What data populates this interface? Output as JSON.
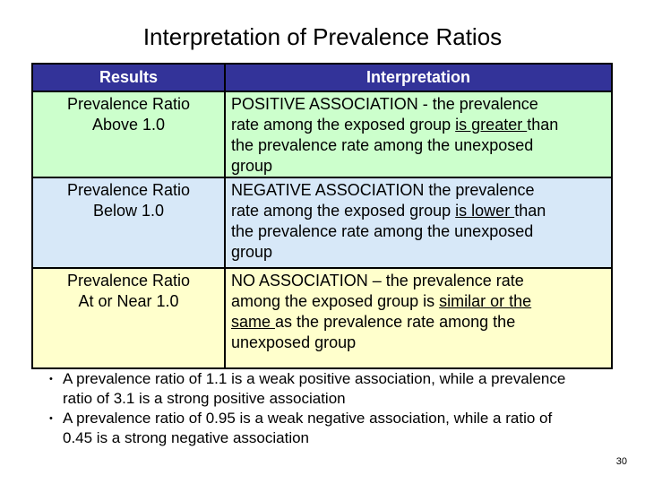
{
  "title": "Interpretation of Prevalence Ratios",
  "colors": {
    "header_bg": "#333399",
    "header_text": "#ffffff",
    "row_positive_bg": "#ccffcc",
    "row_negative_bg": "#d7e8f8",
    "row_none_bg": "#ffffcc",
    "border": "#000000"
  },
  "table": {
    "headers": [
      "Results",
      "Interpretation"
    ],
    "rows": [
      {
        "result": "Prevalence Ratio\nAbove 1.0",
        "bg_key": "row_positive_bg",
        "parts": [
          {
            "t": "POSITIVE ASSOCIATION - the prevalence\nrate among the exposed group ",
            "u": false
          },
          {
            "t": "is greater ",
            "u": true
          },
          {
            "t": "than\nthe prevalence rate among the unexposed\ngroup",
            "u": false
          }
        ]
      },
      {
        "result": "Prevalence Ratio\nBelow 1.0",
        "bg_key": "row_negative_bg",
        "parts": [
          {
            "t": "NEGATIVE ASSOCIATION the prevalence\nrate among the exposed group ",
            "u": false
          },
          {
            "t": "is lower ",
            "u": true
          },
          {
            "t": "than\nthe prevalence rate among the unexposed\ngroup",
            "u": false
          }
        ]
      },
      {
        "result": "Prevalence Ratio\nAt or Near 1.0",
        "bg_key": "row_none_bg",
        "parts": [
          {
            "t": "NO ASSOCIATION – the prevalence rate\namong the exposed group is ",
            "u": false
          },
          {
            "t": "similar or the\nsame ",
            "u": true
          },
          {
            "t": "as the prevalence rate among the\nunexposed group",
            "u": false
          }
        ]
      }
    ]
  },
  "bullets": {
    "marker": "•",
    "items": [
      "A prevalence ratio of 1.1 is a weak positive association, while a prevalence\nratio of 3.1 is a strong positive association",
      "A prevalence ratio of 0.95 is a weak negative association, while a ratio of\n0.45 is a strong negative association"
    ]
  },
  "page_number": "30"
}
